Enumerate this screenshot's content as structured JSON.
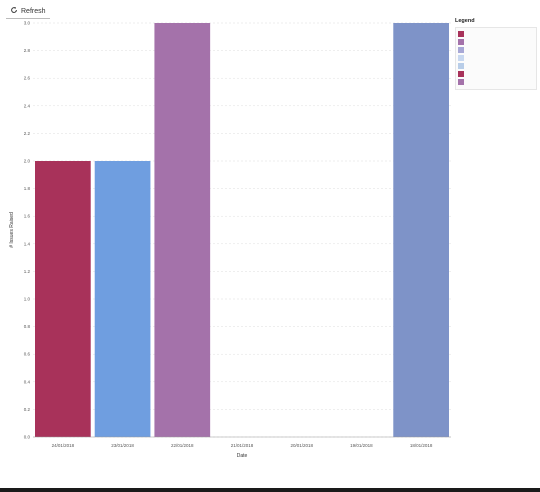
{
  "toolbar": {
    "refresh_label": "Refresh",
    "refresh_icon": "refresh-icon"
  },
  "legend": {
    "title": "Legend"
  },
  "colors": {
    "grid": "#dddddd",
    "bars": [
      "#a8325a",
      "#6f9ee0",
      "#a472aa",
      "#7e93c8"
    ],
    "legend": [
      "#a8325a",
      "#a472aa",
      "#a8a8d6",
      "#c8d8f0",
      "#b8cde8",
      "#a8325a",
      "#a472aa"
    ]
  },
  "chart_data": {
    "type": "bar",
    "categories": [
      "24/01/2018",
      "23/01/2018",
      "22/01/2018",
      "21/01/2018",
      "20/01/2018",
      "19/01/2018",
      "18/01/2018"
    ],
    "values": [
      2,
      2,
      3,
      0,
      0,
      0,
      3
    ],
    "xlabel": "Date",
    "ylabel": "# Issues Raised",
    "ylim": [
      0,
      3
    ],
    "yticks": [
      "0.0",
      "0.2",
      "0.4",
      "0.6",
      "0.8",
      "1.0",
      "1.2",
      "1.4",
      "1.6",
      "1.8",
      "2.0",
      "2.2",
      "2.4",
      "2.6",
      "2.8",
      "3.0"
    ],
    "grid": true,
    "legend_placement": "top-right"
  }
}
